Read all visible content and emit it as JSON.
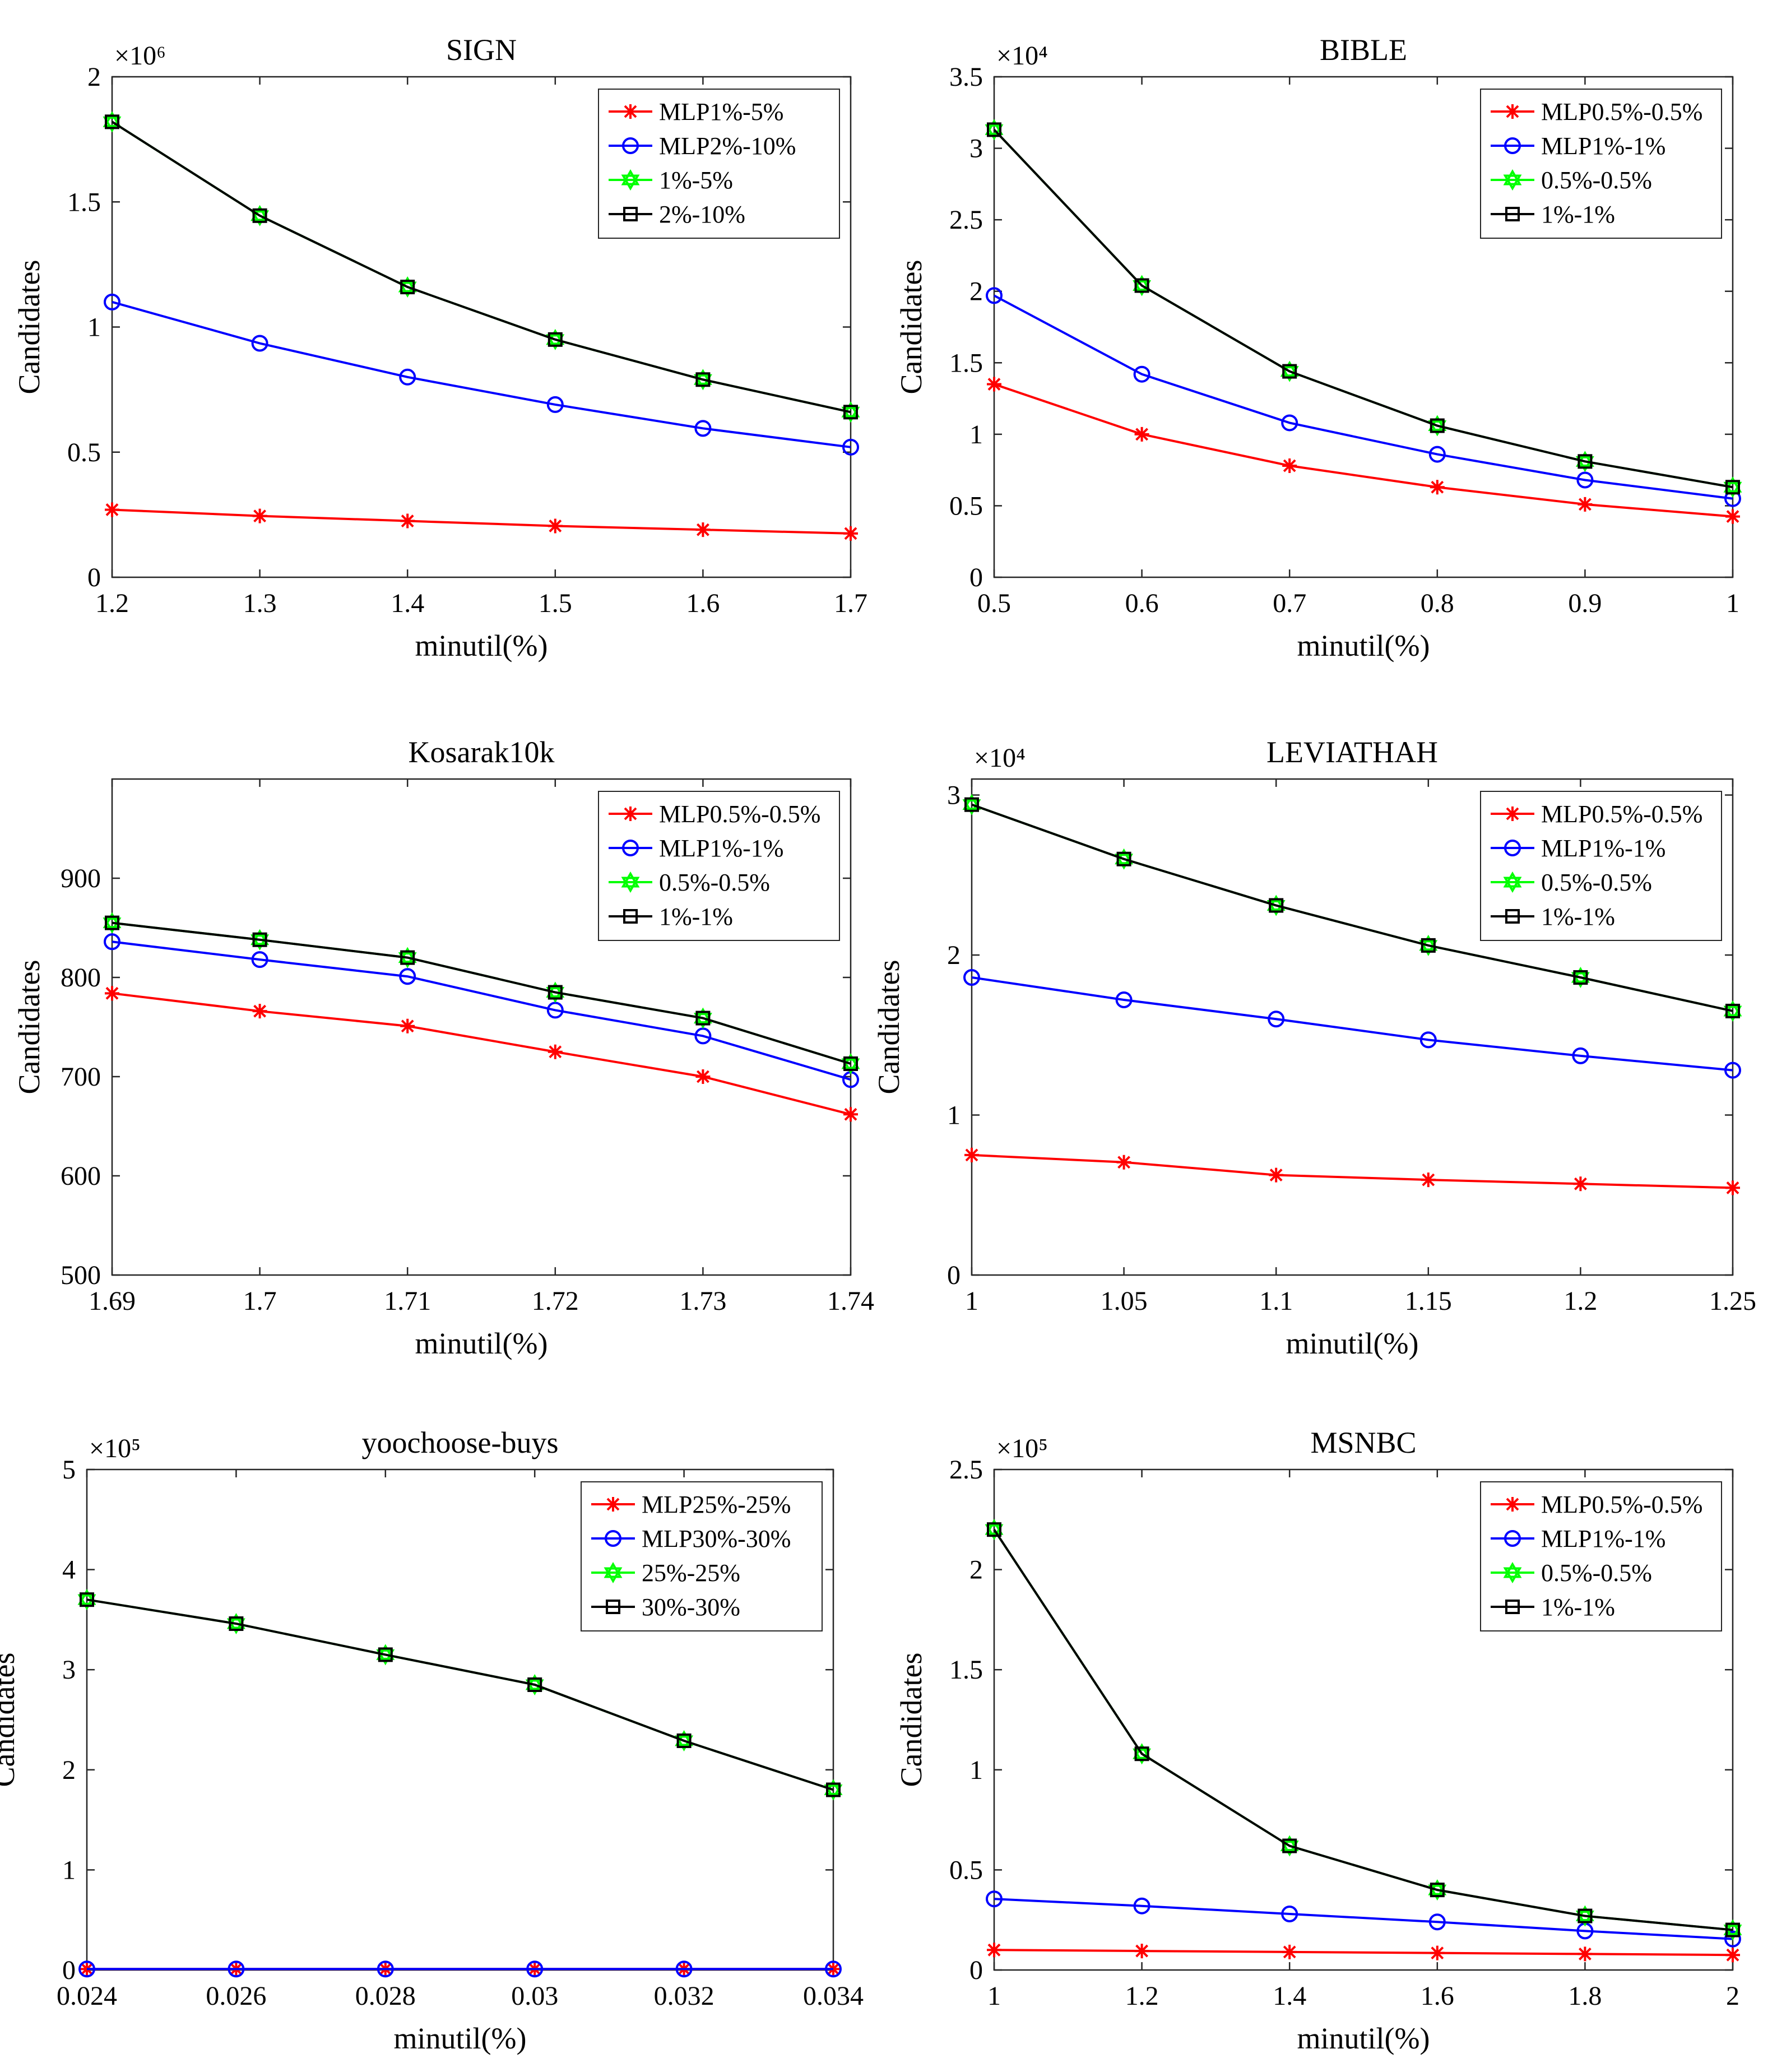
{
  "figure": {
    "layout": "3 rows x 2 columns"
  },
  "chart_data": [
    {
      "type": "line",
      "title": "SIGN",
      "xlabel": "minutil(%)",
      "ylabel": "Candidates",
      "x": [
        1.2,
        1.3,
        1.4,
        1.5,
        1.6,
        1.7
      ],
      "xticks": [
        "1.2",
        "1.3",
        "1.4",
        "1.5",
        "1.6",
        "1.7"
      ],
      "xlim": [
        1.2,
        1.7
      ],
      "yticks": [
        0,
        0.5,
        1,
        1.5,
        2
      ],
      "ytick_labels": [
        "0",
        "0.5",
        "1",
        "1.5",
        "2"
      ],
      "ylim": [
        0,
        2
      ],
      "y_multiplier_label": "×10⁶",
      "legend_location": "top-right",
      "series": [
        {
          "name": "MLP1%-5%",
          "values": [
            0.27,
            0.245,
            0.225,
            0.205,
            0.19,
            0.175
          ],
          "color": "#ff0000",
          "marker": "star"
        },
        {
          "name": "MLP2%-10%",
          "values": [
            1.1,
            0.935,
            0.8,
            0.69,
            0.595,
            0.52
          ],
          "color": "#0000ff",
          "marker": "circle"
        },
        {
          "name": "1%-5%",
          "values": [
            1.82,
            1.445,
            1.16,
            0.95,
            0.79,
            0.66
          ],
          "color": "#00ff00",
          "marker": "hexagram"
        },
        {
          "name": "2%-10%",
          "values": [
            1.82,
            1.445,
            1.16,
            0.95,
            0.79,
            0.66
          ],
          "color": "#000000",
          "marker": "square"
        }
      ]
    },
    {
      "type": "line",
      "title": "BIBLE",
      "xlabel": "minutil(%)",
      "ylabel": "Candidates",
      "x": [
        0.5,
        0.6,
        0.7,
        0.8,
        0.9,
        1.0
      ],
      "xticks": [
        "0.5",
        "0.6",
        "0.7",
        "0.8",
        "0.9",
        "1"
      ],
      "xlim": [
        0.5,
        1.0
      ],
      "yticks": [
        0,
        0.5,
        1,
        1.5,
        2,
        2.5,
        3,
        3.5
      ],
      "ytick_labels": [
        "0",
        "0.5",
        "1",
        "1.5",
        "2",
        "2.5",
        "3",
        "3.5"
      ],
      "ylim": [
        0,
        3.5
      ],
      "y_multiplier_label": "×10⁴",
      "legend_location": "top-right",
      "series": [
        {
          "name": "MLP0.5%-0.5%",
          "values": [
            1.35,
            1.0,
            0.78,
            0.63,
            0.51,
            0.425
          ],
          "color": "#ff0000",
          "marker": "star"
        },
        {
          "name": "MLP1%-1%",
          "values": [
            1.97,
            1.42,
            1.08,
            0.86,
            0.68,
            0.55
          ],
          "color": "#0000ff",
          "marker": "circle"
        },
        {
          "name": "0.5%-0.5%",
          "values": [
            3.13,
            2.04,
            1.44,
            1.06,
            0.81,
            0.63
          ],
          "color": "#00ff00",
          "marker": "hexagram"
        },
        {
          "name": "1%-1%",
          "values": [
            3.13,
            2.04,
            1.44,
            1.06,
            0.81,
            0.63
          ],
          "color": "#000000",
          "marker": "square"
        }
      ]
    },
    {
      "type": "line",
      "title": "Kosarak10k",
      "xlabel": "minutil(%)",
      "ylabel": "Candidates",
      "x": [
        1.69,
        1.7,
        1.71,
        1.72,
        1.73,
        1.74
      ],
      "xticks": [
        "1.69",
        "1.7",
        "1.71",
        "1.72",
        "1.73",
        "1.74"
      ],
      "xlim": [
        1.69,
        1.74
      ],
      "yticks": [
        500,
        600,
        700,
        800,
        900
      ],
      "ytick_labels": [
        "500",
        "600",
        "700",
        "800",
        "900"
      ],
      "ylim": [
        500,
        1000
      ],
      "y_multiplier_label": "",
      "legend_location": "top-right",
      "series": [
        {
          "name": "MLP0.5%-0.5%",
          "values": [
            784,
            766,
            751,
            725,
            700,
            662
          ],
          "color": "#ff0000",
          "marker": "star"
        },
        {
          "name": "MLP1%-1%",
          "values": [
            836,
            818,
            801,
            767,
            741,
            697
          ],
          "color": "#0000ff",
          "marker": "circle"
        },
        {
          "name": "0.5%-0.5%",
          "values": [
            855,
            838,
            820,
            785,
            759,
            713
          ],
          "color": "#00ff00",
          "marker": "hexagram"
        },
        {
          "name": "1%-1%",
          "values": [
            855,
            838,
            820,
            785,
            759,
            713
          ],
          "color": "#000000",
          "marker": "square"
        }
      ]
    },
    {
      "type": "line",
      "title": "LEVIATHAH",
      "xlabel": "minutil(%)",
      "ylabel": "Candidates",
      "x": [
        1.0,
        1.05,
        1.1,
        1.15,
        1.2,
        1.25
      ],
      "xticks": [
        "1",
        "1.05",
        "1.1",
        "1.15",
        "1.2",
        "1.25"
      ],
      "xlim": [
        1.0,
        1.25
      ],
      "yticks": [
        0,
        1,
        2,
        3
      ],
      "ytick_labels": [
        "0",
        "1",
        "2",
        "3"
      ],
      "ylim": [
        0,
        3.1
      ],
      "y_multiplier_label": "×10⁴",
      "legend_location": "top-right",
      "series": [
        {
          "name": "MLP0.5%-0.5%",
          "values": [
            0.75,
            0.705,
            0.625,
            0.595,
            0.57,
            0.545
          ],
          "color": "#ff0000",
          "marker": "star"
        },
        {
          "name": "MLP1%-1%",
          "values": [
            1.86,
            1.72,
            1.6,
            1.47,
            1.37,
            1.28
          ],
          "color": "#0000ff",
          "marker": "circle"
        },
        {
          "name": "0.5%-0.5%",
          "values": [
            2.94,
            2.6,
            2.31,
            2.06,
            1.86,
            1.65
          ],
          "color": "#00ff00",
          "marker": "hexagram"
        },
        {
          "name": "1%-1%",
          "values": [
            2.94,
            2.6,
            2.31,
            2.06,
            1.86,
            1.65
          ],
          "color": "#000000",
          "marker": "square"
        }
      ]
    },
    {
      "type": "line",
      "title": "yoochoose-buys",
      "xlabel": "minutil(%)",
      "ylabel": "Candidates",
      "x": [
        0.024,
        0.026,
        0.028,
        0.03,
        0.032,
        0.034
      ],
      "xticks": [
        "0.024",
        "0.026",
        "0.028",
        "0.03",
        "0.032",
        "0.034"
      ],
      "xlim": [
        0.024,
        0.034
      ],
      "yticks": [
        0,
        1,
        2,
        3,
        4,
        5
      ],
      "ytick_labels": [
        "0",
        "1",
        "2",
        "3",
        "4",
        "5"
      ],
      "ylim": [
        0,
        5
      ],
      "y_multiplier_label": "×10⁵",
      "legend_location": "top-right",
      "series": [
        {
          "name": "MLP25%-25%",
          "values": [
            0.01,
            0.01,
            0.01,
            0.01,
            0.01,
            0.01
          ],
          "color": "#ff0000",
          "marker": "star"
        },
        {
          "name": "MLP30%-30%",
          "values": [
            0.01,
            0.01,
            0.01,
            0.01,
            0.01,
            0.01
          ],
          "color": "#0000ff",
          "marker": "circle"
        },
        {
          "name": "25%-25%",
          "values": [
            3.7,
            3.46,
            3.15,
            2.85,
            2.29,
            1.8
          ],
          "color": "#00ff00",
          "marker": "hexagram"
        },
        {
          "name": "30%-30%",
          "values": [
            3.7,
            3.46,
            3.15,
            2.85,
            2.29,
            1.8
          ],
          "color": "#000000",
          "marker": "square"
        }
      ]
    },
    {
      "type": "line",
      "title": "MSNBC",
      "xlabel": "minutil(%)",
      "ylabel": "Candidates",
      "x": [
        1.0,
        1.2,
        1.4,
        1.6,
        1.8,
        2.0
      ],
      "xticks": [
        "1",
        "1.2",
        "1.4",
        "1.6",
        "1.8",
        "2"
      ],
      "xlim": [
        1.0,
        2.0
      ],
      "yticks": [
        0,
        0.5,
        1,
        1.5,
        2,
        2.5
      ],
      "ytick_labels": [
        "0",
        "0.5",
        "1",
        "1.5",
        "2",
        "2.5"
      ],
      "ylim": [
        0,
        2.5
      ],
      "y_multiplier_label": "×10⁵",
      "legend_location": "top-right",
      "series": [
        {
          "name": "MLP0.5%-0.5%",
          "values": [
            0.1,
            0.095,
            0.09,
            0.085,
            0.08,
            0.075
          ],
          "color": "#ff0000",
          "marker": "star"
        },
        {
          "name": "MLP1%-1%",
          "values": [
            0.355,
            0.32,
            0.28,
            0.24,
            0.195,
            0.155
          ],
          "color": "#0000ff",
          "marker": "circle"
        },
        {
          "name": "0.5%-0.5%",
          "values": [
            2.2,
            1.08,
            0.62,
            0.4,
            0.27,
            0.2
          ],
          "color": "#00ff00",
          "marker": "hexagram"
        },
        {
          "name": "1%-1%",
          "values": [
            2.2,
            1.08,
            0.62,
            0.4,
            0.27,
            0.2
          ],
          "color": "#000000",
          "marker": "square"
        }
      ]
    }
  ]
}
